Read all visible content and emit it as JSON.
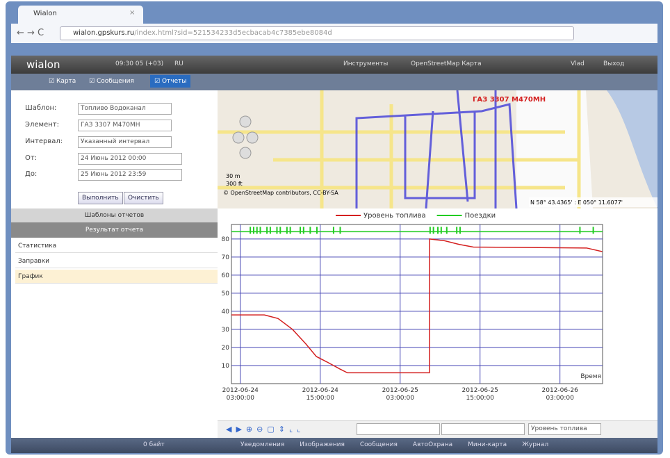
{
  "browser": {
    "tab_title": "Wialon",
    "url_host": "wialon.gpskurs.ru",
    "url_path": "/index.html?sid=521534233d5ecbacab4c7385ebe8084d"
  },
  "header": {
    "logo": "wialon",
    "time": "09:30 05 (+03)",
    "lang": "RU",
    "menu": [
      "Инструменты",
      "OpenStreetMap Карта"
    ],
    "user": "Vlad",
    "logout": "Выход"
  },
  "tabs": [
    "Карта",
    "Сообщения",
    "Отчеты"
  ],
  "form": {
    "fields": [
      {
        "label": "Шаблон:",
        "value": "Топливо Водоканал"
      },
      {
        "label": "Элемент:",
        "value": "ГАЗ 3307 М470МН"
      },
      {
        "label": "Интервал:",
        "value": "Указанный интервал"
      },
      {
        "label": "От:",
        "value": "24 Июнь 2012 00:00"
      },
      {
        "label": "До:",
        "value": "25 Июнь 2012 23:59"
      }
    ],
    "buttons": [
      "Выполнить",
      "Очистить"
    ]
  },
  "panels": [
    "Шаблоны отчетов",
    "Результат отчета"
  ],
  "results": [
    "Статистика",
    "Заправки",
    "График"
  ],
  "map": {
    "unit_label": "ГАЗ 3307 М470МН",
    "scale": [
      "30 m",
      "300 ft"
    ],
    "attribution": "© OpenStreetMap contributors, CC-BY-SA",
    "coords": "N 58° 43.4365' : E 050° 11.6077'"
  },
  "chart_data": {
    "type": "line",
    "x_label": "Время",
    "xlim": [
      "2012-06-24 01:40:00",
      "2012-06-26 09:24:00"
    ],
    "xticks": [
      "2012-06-24 03:00:00",
      "2012-06-24 15:00:00",
      "2012-06-25 03:00:00",
      "2012-06-25 15:00:00",
      "2012-06-26 03:00:00"
    ],
    "ylim": [
      0,
      88
    ],
    "yticks": [
      10,
      20,
      30,
      40,
      50,
      60,
      70,
      80
    ],
    "grid": true,
    "series": [
      {
        "name": "Уровень топлива",
        "color": "#d42020",
        "x": [
          "2012-06-24 01:40:00",
          "2012-06-24 06:36:00",
          "2012-06-24 08:40:00",
          "2012-06-24 10:50:00",
          "2012-06-24 12:50:00",
          "2012-06-24 14:25:00",
          "2012-06-24 16:00:00",
          "2012-06-24 18:00:00",
          "2012-06-24 19:05:00",
          "2012-06-25 07:24:00",
          "2012-06-25 07:25:00",
          "2012-06-25 09:40:00",
          "2012-06-25 11:50:00",
          "2012-06-25 14:00:00",
          "2012-06-26 07:00:00",
          "2012-06-26 09:20:00"
        ],
        "values": [
          38,
          38,
          36,
          30,
          22,
          15,
          12,
          8,
          6,
          6,
          80,
          79,
          77,
          75.5,
          75,
          73
        ]
      },
      {
        "name": "Поездки",
        "color": "#22cc22",
        "x": [
          "2012-06-24 01:40:00",
          "2012-06-26 09:24:00"
        ],
        "values": [
          84,
          84
        ],
        "trips": [
          "2012-06-24 04:30:00",
          "2012-06-24 05:00:00",
          "2012-06-24 05:30:00",
          "2012-06-24 06:00:00",
          "2012-06-24 07:00:00",
          "2012-06-24 07:30:00",
          "2012-06-24 08:30:00",
          "2012-06-24 09:00:00",
          "2012-06-24 10:00:00",
          "2012-06-24 10:30:00",
          "2012-06-24 12:00:00",
          "2012-06-24 12:30:00",
          "2012-06-24 13:30:00",
          "2012-06-24 14:30:00",
          "2012-06-24 17:00:00",
          "2012-06-24 18:00:00",
          "2012-06-25 07:30:00",
          "2012-06-25 08:00:00",
          "2012-06-25 08:40:00",
          "2012-06-25 09:10:00",
          "2012-06-25 10:00:00",
          "2012-06-25 11:30:00",
          "2012-06-25 12:00:00",
          "2012-06-26 06:00:00",
          "2012-06-26 08:00:00"
        ]
      }
    ]
  },
  "chart_toolbar": {
    "select": "Уровень топлива"
  },
  "status": {
    "traffic": "0 байт",
    "items": [
      "Уведомления",
      "Изображения",
      "Сообщения",
      "АвтоОхрана",
      "Мини-карта",
      "Журнал"
    ]
  }
}
